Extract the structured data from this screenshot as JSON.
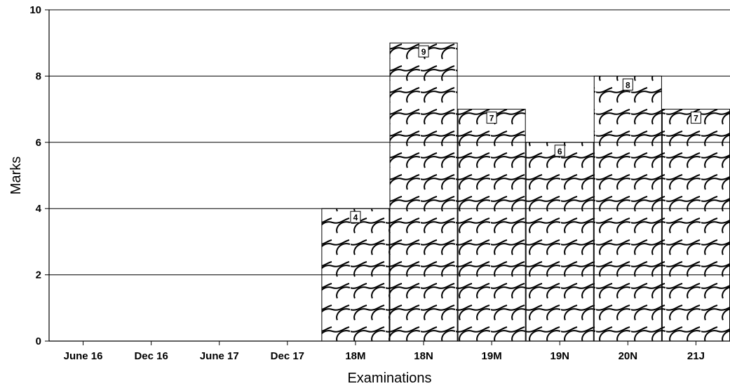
{
  "chart_data": {
    "type": "bar",
    "title": "",
    "xlabel": "Examinations",
    "ylabel": "Marks",
    "categories": [
      "June 16",
      "Dec 16",
      "June 17",
      "Dec 17",
      "18M",
      "18N",
      "19M",
      "19N",
      "20N",
      "21J"
    ],
    "values": [
      0,
      0,
      0,
      0,
      4,
      9,
      7,
      6,
      8,
      7
    ],
    "data_labels": [
      "",
      "",
      "",
      "",
      "4",
      "9",
      "7",
      "6",
      "8",
      "7"
    ],
    "ylim": [
      0,
      10
    ],
    "yticks": [
      0,
      2,
      4,
      6,
      8,
      10
    ],
    "ytick_labels": [
      "0",
      "2",
      "4",
      "6",
      "8",
      "10"
    ],
    "grid": "horizontal",
    "legend": "none",
    "bar_fill": "wave-pattern",
    "colors": {
      "bar_stroke": "#000000",
      "pattern": "#000000",
      "background": "#ffffff",
      "grid": "#000000"
    }
  }
}
